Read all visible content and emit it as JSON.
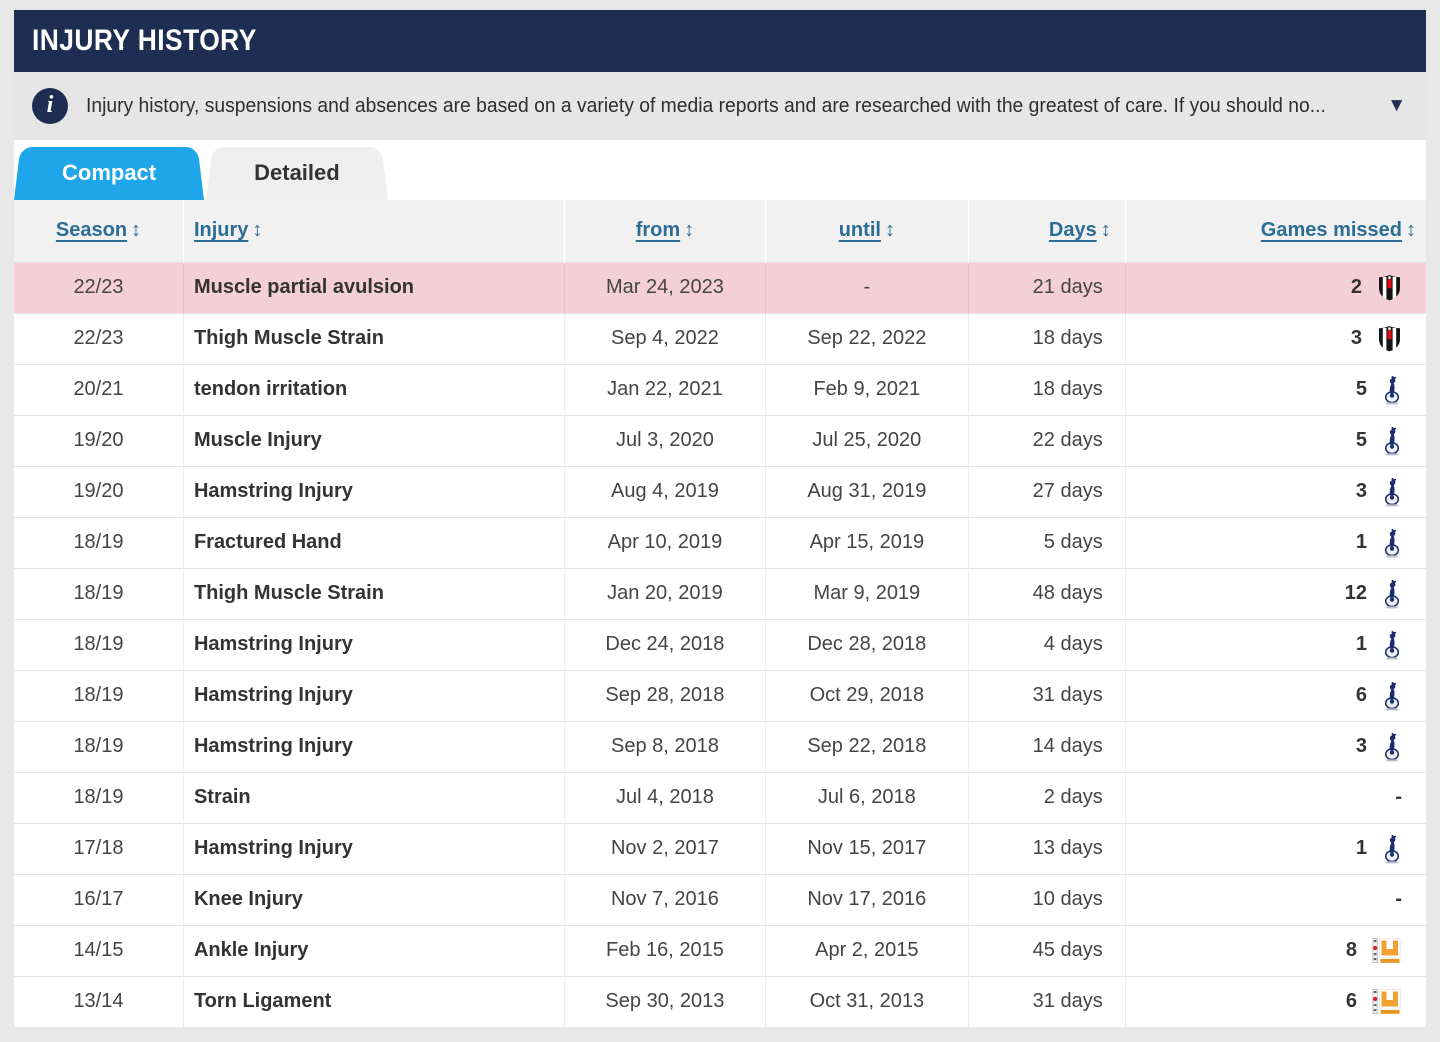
{
  "colors": {
    "header-navy": "#1d2e52",
    "accent-blue": "#1ea5ea",
    "link-blue": "#2c6d94",
    "highlight-pink": "#f4cfd7",
    "besiktas-black": "#141414",
    "besiktas-red": "#e30613",
    "tottenham-navy": "#1b2d6e",
    "mkdons-amber": "#f0a132"
  },
  "header": {
    "title": "INJURY HISTORY"
  },
  "info_bar": {
    "icon": "info-icon",
    "text": "Injury history, suspensions and absences are based on a variety of media reports and are researched with the greatest of care. If you should no...",
    "expand_icon": "caret-down-icon"
  },
  "tabs": [
    {
      "label": "Compact",
      "active": true
    },
    {
      "label": "Detailed",
      "active": false
    }
  ],
  "table": {
    "sort_icon": "↕",
    "columns": [
      {
        "label": "Season"
      },
      {
        "label": "Injury"
      },
      {
        "label": "from"
      },
      {
        "label": "until"
      },
      {
        "label": "Days"
      },
      {
        "label": "Games missed"
      }
    ],
    "rows": [
      {
        "season": "22/23",
        "injury": "Muscle partial avulsion",
        "from": "Mar 24, 2023",
        "until": "-",
        "days": "21 days",
        "games_missed": "2",
        "club": "besiktas",
        "highlighted": true
      },
      {
        "season": "22/23",
        "injury": "Thigh Muscle Strain",
        "from": "Sep 4, 2022",
        "until": "Sep 22, 2022",
        "days": "18 days",
        "games_missed": "3",
        "club": "besiktas",
        "highlighted": false
      },
      {
        "season": "20/21",
        "injury": "tendon irritation",
        "from": "Jan 22, 2021",
        "until": "Feb 9, 2021",
        "days": "18 days",
        "games_missed": "5",
        "club": "tottenham",
        "highlighted": false
      },
      {
        "season": "19/20",
        "injury": "Muscle Injury",
        "from": "Jul 3, 2020",
        "until": "Jul 25, 2020",
        "days": "22 days",
        "games_missed": "5",
        "club": "tottenham",
        "highlighted": false
      },
      {
        "season": "19/20",
        "injury": "Hamstring Injury",
        "from": "Aug 4, 2019",
        "until": "Aug 31, 2019",
        "days": "27 days",
        "games_missed": "3",
        "club": "tottenham",
        "highlighted": false
      },
      {
        "season": "18/19",
        "injury": "Fractured Hand",
        "from": "Apr 10, 2019",
        "until": "Apr 15, 2019",
        "days": "5 days",
        "games_missed": "1",
        "club": "tottenham",
        "highlighted": false
      },
      {
        "season": "18/19",
        "injury": "Thigh Muscle Strain",
        "from": "Jan 20, 2019",
        "until": "Mar 9, 2019",
        "days": "48 days",
        "games_missed": "12",
        "club": "tottenham",
        "highlighted": false
      },
      {
        "season": "18/19",
        "injury": "Hamstring Injury",
        "from": "Dec 24, 2018",
        "until": "Dec 28, 2018",
        "days": "4 days",
        "games_missed": "1",
        "club": "tottenham",
        "highlighted": false
      },
      {
        "season": "18/19",
        "injury": "Hamstring Injury",
        "from": "Sep 28, 2018",
        "until": "Oct 29, 2018",
        "days": "31 days",
        "games_missed": "6",
        "club": "tottenham",
        "highlighted": false
      },
      {
        "season": "18/19",
        "injury": "Hamstring Injury",
        "from": "Sep 8, 2018",
        "until": "Sep 22, 2018",
        "days": "14 days",
        "games_missed": "3",
        "club": "tottenham",
        "highlighted": false
      },
      {
        "season": "18/19",
        "injury": "Strain",
        "from": "Jul 4, 2018",
        "until": "Jul 6, 2018",
        "days": "2 days",
        "games_missed": "-",
        "club": null,
        "highlighted": false
      },
      {
        "season": "17/18",
        "injury": "Hamstring Injury",
        "from": "Nov 2, 2017",
        "until": "Nov 15, 2017",
        "days": "13 days",
        "games_missed": "1",
        "club": "tottenham",
        "highlighted": false
      },
      {
        "season": "16/17",
        "injury": "Knee Injury",
        "from": "Nov 7, 2016",
        "until": "Nov 17, 2016",
        "days": "10 days",
        "games_missed": "-",
        "club": null,
        "highlighted": false
      },
      {
        "season": "14/15",
        "injury": "Ankle Injury",
        "from": "Feb 16, 2015",
        "until": "Apr 2, 2015",
        "days": "45 days",
        "games_missed": "8",
        "club": "mk-dons",
        "highlighted": false
      },
      {
        "season": "13/14",
        "injury": "Torn Ligament",
        "from": "Sep 30, 2013",
        "until": "Oct 31, 2013",
        "days": "31 days",
        "games_missed": "6",
        "club": "mk-dons",
        "highlighted": false
      }
    ]
  }
}
